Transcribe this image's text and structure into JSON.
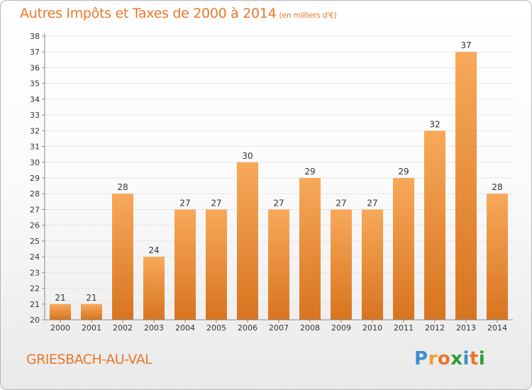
{
  "title": "Autres Impôts et Taxes de 2000 à 2014",
  "subtitle": "(en milliers d'€)",
  "commune": "GRIESBACH-AU-VAL",
  "logo": {
    "text": "Proxiti",
    "letters": [
      {
        "char": "P",
        "color": "#3a8fd1"
      },
      {
        "char": "r",
        "color": "#f0a030"
      },
      {
        "char": "o",
        "color": "#e8772a"
      },
      {
        "char": "x",
        "color": "#2e9d3a"
      },
      {
        "char": "i",
        "color": "#3a8fd1"
      },
      {
        "char": "t",
        "color": "#e8772a"
      },
      {
        "char": "i",
        "color": "#2e9d3a"
      }
    ]
  },
  "colors": {
    "accent": "#e8772a",
    "bar_top": "#f7a95a",
    "bar_bottom": "#d8741f",
    "grid": "#e6e6e6",
    "axis": "#888888"
  },
  "chart_data": {
    "type": "bar",
    "title": "Autres Impôts et Taxes de 2000 à 2014",
    "subtitle": "(en milliers d'€)",
    "xlabel": "",
    "ylabel": "",
    "categories": [
      "2000",
      "2001",
      "2002",
      "2003",
      "2004",
      "2005",
      "2006",
      "2007",
      "2008",
      "2009",
      "2010",
      "2011",
      "2012",
      "2013",
      "2014"
    ],
    "values": [
      21,
      21,
      28,
      24,
      27,
      27,
      30,
      27,
      29,
      27,
      27,
      29,
      32,
      37,
      28
    ],
    "ylim": [
      20,
      38
    ],
    "yticks": [
      20,
      21,
      22,
      23,
      24,
      25,
      26,
      27,
      28,
      29,
      30,
      31,
      32,
      33,
      34,
      35,
      36,
      37,
      38
    ],
    "grid": true,
    "legend": "none",
    "data_labels": true
  }
}
